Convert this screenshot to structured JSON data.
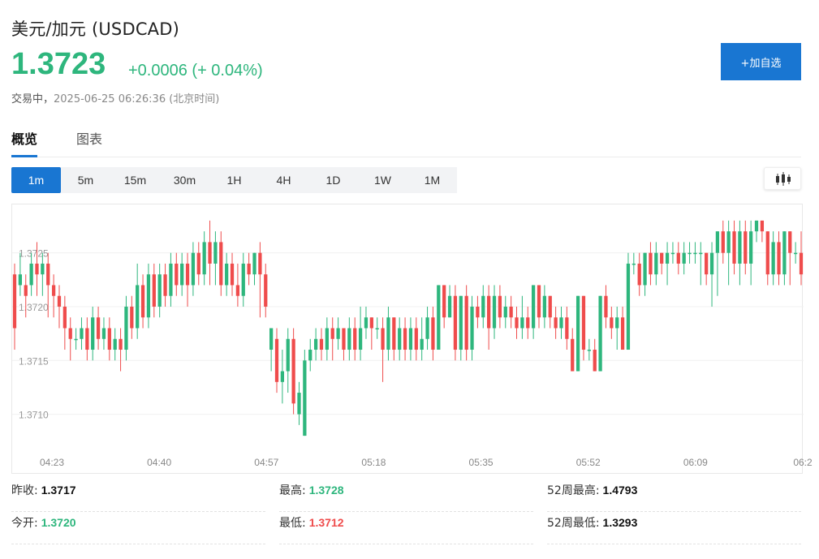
{
  "header": {
    "title": "美元/加元 (USDCAD)",
    "price": "1.3723",
    "change": "+0.0006 (+ 0.04%)",
    "status_label": "交易中，",
    "timestamp": "2025-06-25 06:26:36 (北京时间)",
    "add_button": "+加自选"
  },
  "tabs": [
    {
      "label": "概览",
      "active": true
    },
    {
      "label": "图表",
      "active": false
    }
  ],
  "intervals": [
    {
      "label": "1m",
      "active": true
    },
    {
      "label": "5m",
      "active": false
    },
    {
      "label": "15m",
      "active": false
    },
    {
      "label": "30m",
      "active": false
    },
    {
      "label": "1H",
      "active": false
    },
    {
      "label": "4H",
      "active": false
    },
    {
      "label": "1D",
      "active": false
    },
    {
      "label": "1W",
      "active": false
    },
    {
      "label": "1M",
      "active": false
    }
  ],
  "chart_type_icon": "candlestick-icon",
  "colors": {
    "up": "#2eb67d",
    "down": "#ef4c4c",
    "accent": "#1976d2"
  },
  "chart_data": {
    "type": "candlestick",
    "y_ticks": [
      {
        "value": 1.3725,
        "label": "1.3725"
      },
      {
        "value": 1.372,
        "label": "1.3720"
      },
      {
        "value": 1.3715,
        "label": "1.3715"
      },
      {
        "value": 1.371,
        "label": "1.3710"
      }
    ],
    "x_ticks": [
      "04:23",
      "04:40",
      "04:57",
      "05:18",
      "05:35",
      "05:52",
      "06:09",
      "06:2"
    ],
    "ylim": [
      1.37065,
      1.37295
    ],
    "grid": true,
    "candles": [
      [
        1.3723,
        1.3718,
        1.3716,
        1.3724
      ],
      [
        1.3722,
        1.3723,
        1.3721,
        1.3725
      ],
      [
        1.3722,
        1.3721,
        1.3719,
        1.3723
      ],
      [
        1.3722,
        1.3724,
        1.3721,
        1.3725
      ],
      [
        1.3724,
        1.3723,
        1.3721,
        1.3726
      ],
      [
        1.3723,
        1.3724,
        1.3721,
        1.3725
      ],
      [
        1.3724,
        1.3722,
        1.3719,
        1.3725
      ],
      [
        1.3722,
        1.3721,
        1.3719,
        1.3723
      ],
      [
        1.3721,
        1.372,
        1.3718,
        1.3722
      ],
      [
        1.372,
        1.3718,
        1.3716,
        1.3721
      ],
      [
        1.3718,
        1.3717,
        1.3715,
        1.3719
      ],
      [
        1.3717,
        1.3717,
        1.3716,
        1.3718
      ],
      [
        1.3717,
        1.3718,
        1.3716,
        1.3719
      ],
      [
        1.3718,
        1.3716,
        1.3715,
        1.3719
      ],
      [
        1.3716,
        1.3719,
        1.3715,
        1.372
      ],
      [
        1.3719,
        1.3717,
        1.3716,
        1.372
      ],
      [
        1.3717,
        1.3718,
        1.3716,
        1.3719
      ],
      [
        1.3718,
        1.3716,
        1.3715,
        1.3719
      ],
      [
        1.3716,
        1.3717,
        1.3715,
        1.3718
      ],
      [
        1.3717,
        1.3716,
        1.3714,
        1.3718
      ],
      [
        1.3716,
        1.372,
        1.3715,
        1.3721
      ],
      [
        1.372,
        1.3718,
        1.3717,
        1.3721
      ],
      [
        1.3718,
        1.3722,
        1.3717,
        1.3724
      ],
      [
        1.3722,
        1.3719,
        1.3718,
        1.3723
      ],
      [
        1.3719,
        1.3723,
        1.3718,
        1.3724
      ],
      [
        1.3723,
        1.372,
        1.3719,
        1.3724
      ],
      [
        1.372,
        1.3723,
        1.3719,
        1.3724
      ],
      [
        1.3723,
        1.3721,
        1.372,
        1.3724
      ],
      [
        1.3721,
        1.3724,
        1.372,
        1.3725
      ],
      [
        1.3724,
        1.3722,
        1.3721,
        1.3725
      ],
      [
        1.3722,
        1.3724,
        1.3721,
        1.3725
      ],
      [
        1.3724,
        1.3722,
        1.372,
        1.3725
      ],
      [
        1.3722,
        1.3725,
        1.3721,
        1.3726
      ],
      [
        1.3725,
        1.3723,
        1.3722,
        1.3726
      ],
      [
        1.3723,
        1.3726,
        1.3722,
        1.3727
      ],
      [
        1.3726,
        1.3724,
        1.3722,
        1.3728
      ],
      [
        1.3724,
        1.3726,
        1.3722,
        1.3727
      ],
      [
        1.3726,
        1.3722,
        1.3721,
        1.3727
      ],
      [
        1.3722,
        1.3724,
        1.3721,
        1.3725
      ],
      [
        1.3724,
        1.3722,
        1.3721,
        1.3725
      ],
      [
        1.3722,
        1.3721,
        1.372,
        1.3724
      ],
      [
        1.3721,
        1.3724,
        1.372,
        1.3725
      ],
      [
        1.3724,
        1.3723,
        1.3722,
        1.3725
      ],
      [
        1.3723,
        1.3725,
        1.3722,
        1.3725
      ],
      [
        1.3725,
        1.3723,
        1.3719,
        1.3726
      ],
      [
        1.3723,
        1.372,
        1.3719,
        1.3724
      ],
      [
        1.3716,
        1.3718,
        1.3714,
        1.3718
      ],
      [
        1.3717,
        1.3713,
        1.3712,
        1.3718
      ],
      [
        1.3713,
        1.3714,
        1.3711,
        1.3716
      ],
      [
        1.3714,
        1.3717,
        1.3712,
        1.3718
      ],
      [
        1.3717,
        1.3711,
        1.371,
        1.3718
      ],
      [
        1.371,
        1.3712,
        1.3709,
        1.3713
      ],
      [
        1.3708,
        1.3715,
        1.3708,
        1.3716
      ],
      [
        1.3715,
        1.3716,
        1.3714,
        1.3717
      ],
      [
        1.3716,
        1.3717,
        1.3715,
        1.3718
      ],
      [
        1.3717,
        1.3716,
        1.3715,
        1.3718
      ],
      [
        1.3716,
        1.3718,
        1.3715,
        1.3719
      ],
      [
        1.3718,
        1.3717,
        1.3715,
        1.3719
      ],
      [
        1.3717,
        1.3718,
        1.3716,
        1.3719
      ],
      [
        1.3718,
        1.3716,
        1.3715,
        1.3718
      ],
      [
        1.3716,
        1.3718,
        1.3715,
        1.3719
      ],
      [
        1.3718,
        1.3716,
        1.3715,
        1.3719
      ],
      [
        1.3716,
        1.3718,
        1.3715,
        1.372
      ],
      [
        1.3718,
        1.3719,
        1.3717,
        1.372
      ],
      [
        1.3719,
        1.3718,
        1.3716,
        1.3719
      ],
      [
        1.3718,
        1.3718,
        1.3717,
        1.3719
      ],
      [
        1.3718,
        1.3716,
        1.3713,
        1.3719
      ],
      [
        1.3716,
        1.3719,
        1.3715,
        1.372
      ],
      [
        1.3719,
        1.3716,
        1.3715,
        1.3719
      ],
      [
        1.3716,
        1.3718,
        1.3715,
        1.3719
      ],
      [
        1.3718,
        1.3716,
        1.3715,
        1.3719
      ],
      [
        1.3716,
        1.3718,
        1.3715,
        1.3719
      ],
      [
        1.3718,
        1.3716,
        1.3715,
        1.3719
      ],
      [
        1.3716,
        1.3717,
        1.3715,
        1.3719
      ],
      [
        1.3717,
        1.3719,
        1.3716,
        1.372
      ],
      [
        1.3719,
        1.3716,
        1.3715,
        1.372
      ],
      [
        1.3716,
        1.3722,
        1.3716,
        1.3722
      ],
      [
        1.3722,
        1.3719,
        1.3718,
        1.3722
      ],
      [
        1.3719,
        1.3721,
        1.3719,
        1.3722
      ],
      [
        1.3721,
        1.3716,
        1.3715,
        1.3722
      ],
      [
        1.3716,
        1.3721,
        1.3715,
        1.3721
      ],
      [
        1.3721,
        1.3716,
        1.3715,
        1.3722
      ],
      [
        1.3716,
        1.372,
        1.3715,
        1.3721
      ],
      [
        1.372,
        1.3719,
        1.3718,
        1.3721
      ],
      [
        1.3719,
        1.3721,
        1.3718,
        1.3722
      ],
      [
        1.3721,
        1.3718,
        1.3716,
        1.3722
      ],
      [
        1.3718,
        1.3721,
        1.3717,
        1.3722
      ],
      [
        1.3721,
        1.3719,
        1.3718,
        1.3722
      ],
      [
        1.3719,
        1.372,
        1.3718,
        1.3721
      ],
      [
        1.372,
        1.3719,
        1.3718,
        1.3721
      ],
      [
        1.3719,
        1.3718,
        1.3717,
        1.372
      ],
      [
        1.3718,
        1.3719,
        1.3717,
        1.3721
      ],
      [
        1.3719,
        1.3718,
        1.3717,
        1.372
      ],
      [
        1.3718,
        1.3722,
        1.3717,
        1.3722
      ],
      [
        1.3722,
        1.3719,
        1.3718,
        1.3722
      ],
      [
        1.3719,
        1.3721,
        1.3718,
        1.3722
      ],
      [
        1.3721,
        1.3719,
        1.3718,
        1.3721
      ],
      [
        1.3719,
        1.3718,
        1.3717,
        1.372
      ],
      [
        1.3718,
        1.3719,
        1.3717,
        1.372
      ],
      [
        1.3719,
        1.3717,
        1.3716,
        1.372
      ],
      [
        1.3717,
        1.3714,
        1.3714,
        1.3718
      ],
      [
        1.3714,
        1.3721,
        1.3714,
        1.3721
      ],
      [
        1.3721,
        1.3716,
        1.3715,
        1.3721
      ],
      [
        1.3716,
        1.3716,
        1.3715,
        1.3717
      ],
      [
        1.3716,
        1.3714,
        1.3714,
        1.3717
      ],
      [
        1.3714,
        1.3721,
        1.3714,
        1.3721
      ],
      [
        1.3721,
        1.3719,
        1.3718,
        1.3722
      ],
      [
        1.3719,
        1.3718,
        1.3717,
        1.372
      ],
      [
        1.3718,
        1.3719,
        1.3716,
        1.372
      ],
      [
        1.3719,
        1.3716,
        1.3716,
        1.372
      ],
      [
        1.3716,
        1.3724,
        1.3716,
        1.3725
      ],
      [
        1.3724,
        1.3724,
        1.3723,
        1.3725
      ],
      [
        1.3724,
        1.3722,
        1.3721,
        1.3725
      ],
      [
        1.3722,
        1.3725,
        1.3721,
        1.3725
      ],
      [
        1.3725,
        1.3723,
        1.3722,
        1.3726
      ],
      [
        1.3723,
        1.3725,
        1.3722,
        1.3726
      ],
      [
        1.3725,
        1.3724,
        1.3723,
        1.3725
      ],
      [
        1.3724,
        1.3725,
        1.3722,
        1.3726
      ],
      [
        1.3725,
        1.3725,
        1.3724,
        1.3726
      ],
      [
        1.3725,
        1.3724,
        1.3723,
        1.3726
      ],
      [
        1.3724,
        1.3725,
        1.3723,
        1.3726
      ],
      [
        1.3725,
        1.3725,
        1.3724,
        1.3726
      ],
      [
        1.3725,
        1.3725,
        1.3724,
        1.3726
      ],
      [
        1.3725,
        1.3725,
        1.3722,
        1.3726
      ],
      [
        1.3725,
        1.3723,
        1.3722,
        1.3725
      ],
      [
        1.3723,
        1.3725,
        1.372,
        1.3726
      ],
      [
        1.3725,
        1.3727,
        1.3721,
        1.3727
      ],
      [
        1.3727,
        1.3725,
        1.3724,
        1.3728
      ],
      [
        1.3725,
        1.3727,
        1.3722,
        1.3728
      ],
      [
        1.3727,
        1.3724,
        1.3723,
        1.3728
      ],
      [
        1.3724,
        1.3727,
        1.3722,
        1.3728
      ],
      [
        1.3727,
        1.3724,
        1.3723,
        1.3728
      ],
      [
        1.3724,
        1.3727,
        1.3722,
        1.3728
      ],
      [
        1.3727,
        1.3728,
        1.3726,
        1.3728
      ],
      [
        1.3728,
        1.3727,
        1.3726,
        1.3728
      ],
      [
        1.3727,
        1.3723,
        1.3722,
        1.3727
      ],
      [
        1.3723,
        1.3726,
        1.3722,
        1.3727
      ],
      [
        1.3726,
        1.3723,
        1.3722,
        1.3727
      ],
      [
        1.3723,
        1.3727,
        1.3722,
        1.3727
      ],
      [
        1.3727,
        1.3725,
        1.3722,
        1.3727
      ],
      [
        1.3725,
        1.3725,
        1.3724,
        1.3726
      ],
      [
        1.3725,
        1.3723,
        1.3722,
        1.3727
      ]
    ]
  },
  "stats": [
    {
      "label": "昨收:",
      "value": "1.3717",
      "tone": "plain"
    },
    {
      "label": "最高:",
      "value": "1.3728",
      "tone": "up"
    },
    {
      "label": "52周最高:",
      "value": "1.4793",
      "tone": "plain"
    },
    {
      "label": "今开:",
      "value": "1.3720",
      "tone": "up"
    },
    {
      "label": "最低:",
      "value": "1.3712",
      "tone": "down"
    },
    {
      "label": "52周最低:",
      "value": "1.3293",
      "tone": "plain"
    }
  ]
}
